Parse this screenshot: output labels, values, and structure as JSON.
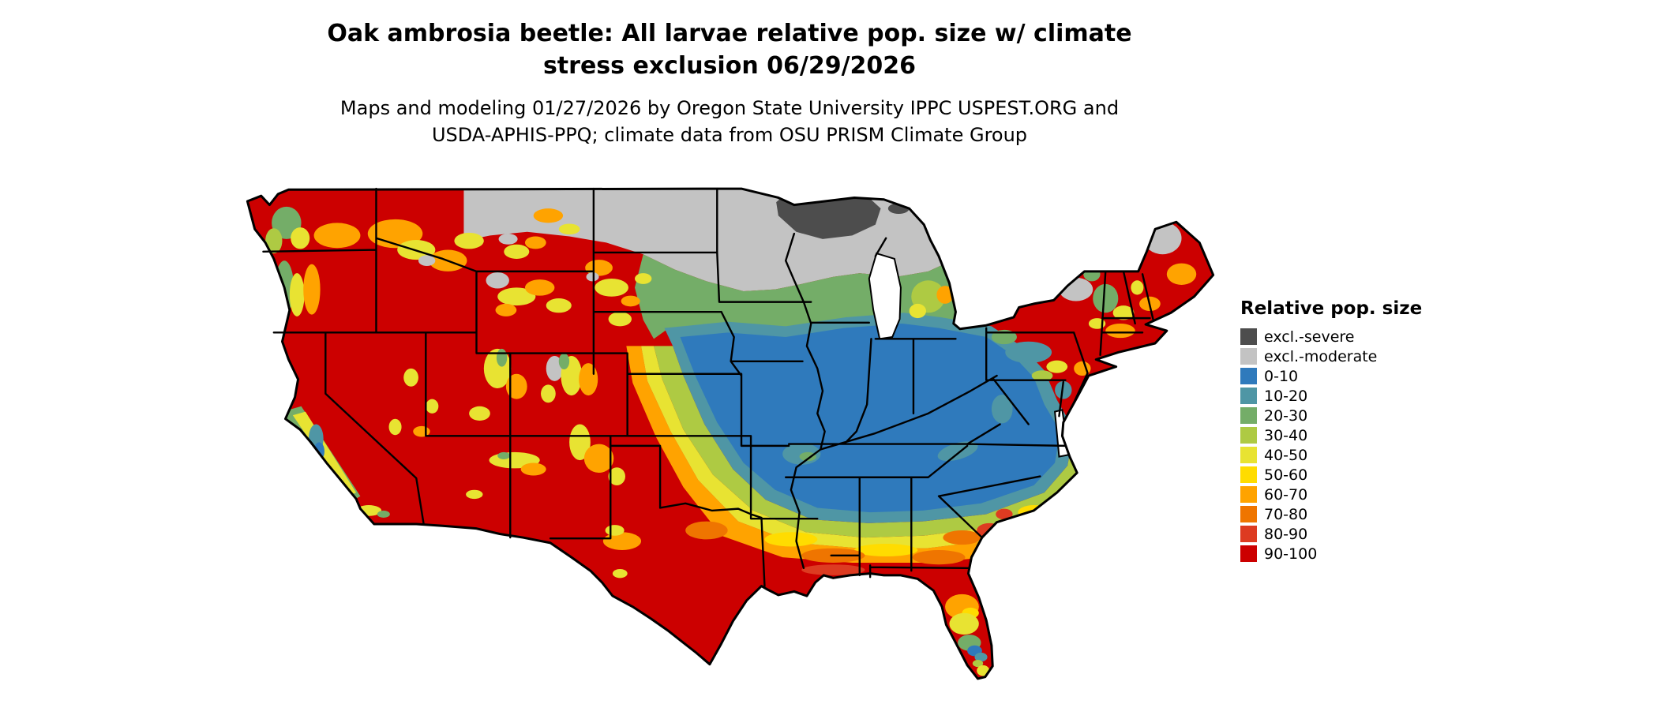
{
  "title": {
    "line1": "Oak ambrosia beetle: All larvae relative pop. size w/ climate",
    "line2": "stress exclusion 06/29/2026"
  },
  "subtitle": {
    "line1": "Maps and modeling 01/27/2026 by Oregon State University IPPC USPEST.ORG and",
    "line2": "USDA-APHIS-PPQ; climate data from OSU PRISM Climate Group"
  },
  "legend": {
    "title": "Relative pop. size",
    "entries": [
      {
        "label": "excl.-severe",
        "color": "#4d4d4d"
      },
      {
        "label": "excl.-moderate",
        "color": "#c3c3c3"
      },
      {
        "label": "0-10",
        "color": "#2f7abc"
      },
      {
        "label": "10-20",
        "color": "#4f96a5"
      },
      {
        "label": "20-30",
        "color": "#74ad68"
      },
      {
        "label": "30-40",
        "color": "#aeca43"
      },
      {
        "label": "40-50",
        "color": "#e8e332"
      },
      {
        "label": "50-60",
        "color": "#ffdc00"
      },
      {
        "label": "60-70",
        "color": "#ffa300"
      },
      {
        "label": "70-80",
        "color": "#ef7500"
      },
      {
        "label": "80-90",
        "color": "#dd3b21"
      },
      {
        "label": "90-100",
        "color": "#cc0000"
      }
    ]
  }
}
